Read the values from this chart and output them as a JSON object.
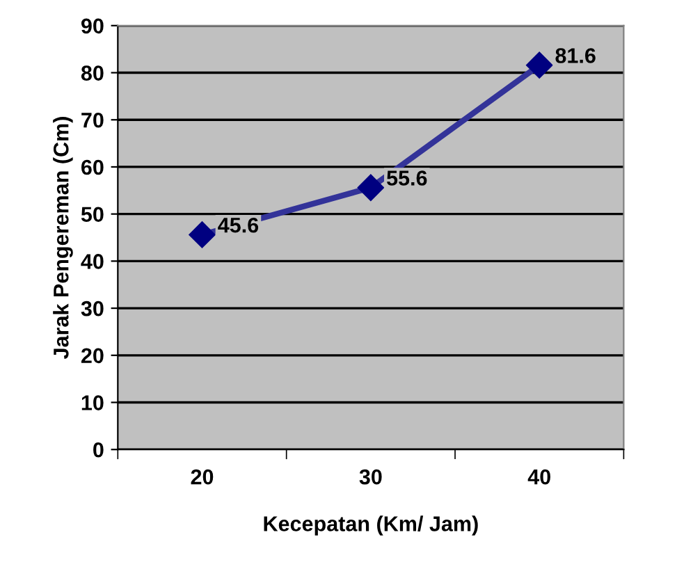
{
  "chart_data": {
    "type": "line",
    "xlabel": "Kecepatan (Km/ Jam)",
    "ylabel": "Jarak Pengereman (Cm)",
    "categories": [
      "20",
      "30",
      "40"
    ],
    "series": [
      {
        "color": "#333399",
        "values": [
          45.6,
          55.6,
          81.6
        ]
      }
    ],
    "ylim": [
      0,
      90
    ],
    "yticks": [
      0,
      10,
      20,
      30,
      40,
      50,
      60,
      70,
      80,
      90
    ],
    "grid": "y",
    "marker": "diamond",
    "line_style": "solid",
    "data_labels": true,
    "legend": false
  }
}
